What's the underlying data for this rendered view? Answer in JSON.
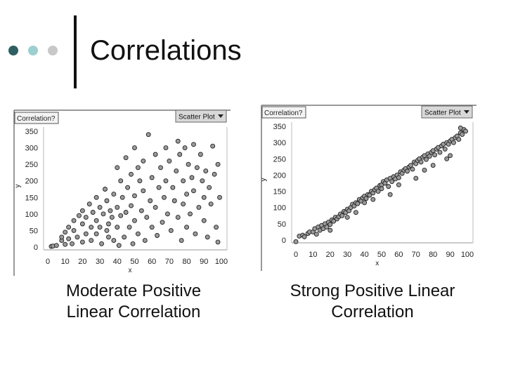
{
  "slide": {
    "title": "Correlations",
    "bullet_colors": [
      "#2f5f60",
      "#9ccfd0",
      "#c8c8c8"
    ]
  },
  "captions": {
    "left": [
      "Moderate Positive",
      "Linear Correlation"
    ],
    "right": [
      "Strong Positive Linear",
      "Correlation"
    ]
  },
  "chart_data": [
    {
      "type": "scatter",
      "title": "",
      "panel_label": "Correlation?",
      "plot_type_button": "Scatter Plot",
      "xlabel": "x",
      "ylabel": "y",
      "xlim": [
        0,
        100
      ],
      "ylim": [
        0,
        350
      ],
      "xticks": [
        "0",
        "10",
        "20",
        "30",
        "40",
        "50",
        "60",
        "70",
        "80",
        "90",
        "100"
      ],
      "yticks": [
        "0",
        "50",
        "100",
        "150",
        "200",
        "250",
        "300",
        "350"
      ],
      "points": [
        [
          2,
          2
        ],
        [
          3,
          3
        ],
        [
          5,
          5
        ],
        [
          8,
          20
        ],
        [
          8,
          30
        ],
        [
          10,
          8
        ],
        [
          10,
          45
        ],
        [
          12,
          25
        ],
        [
          12,
          60
        ],
        [
          14,
          10
        ],
        [
          15,
          80
        ],
        [
          15,
          50
        ],
        [
          17,
          30
        ],
        [
          18,
          95
        ],
        [
          20,
          15
        ],
        [
          20,
          70
        ],
        [
          20,
          110
        ],
        [
          22,
          40
        ],
        [
          22,
          90
        ],
        [
          24,
          130
        ],
        [
          25,
          60
        ],
        [
          25,
          20
        ],
        [
          26,
          105
        ],
        [
          28,
          150
        ],
        [
          28,
          80
        ],
        [
          28,
          40
        ],
        [
          30,
          120
        ],
        [
          30,
          60
        ],
        [
          31,
          10
        ],
        [
          32,
          100
        ],
        [
          33,
          175
        ],
        [
          34,
          140
        ],
        [
          34,
          50
        ],
        [
          35,
          70
        ],
        [
          35,
          30
        ],
        [
          36,
          110
        ],
        [
          37,
          90
        ],
        [
          38,
          160
        ],
        [
          38,
          20
        ],
        [
          40,
          240
        ],
        [
          40,
          120
        ],
        [
          40,
          60
        ],
        [
          41,
          5
        ],
        [
          42,
          200
        ],
        [
          42,
          95
        ],
        [
          43,
          150
        ],
        [
          44,
          30
        ],
        [
          45,
          105
        ],
        [
          45,
          270
        ],
        [
          46,
          180
        ],
        [
          47,
          60
        ],
        [
          48,
          220
        ],
        [
          48,
          125
        ],
        [
          49,
          10
        ],
        [
          50,
          300
        ],
        [
          50,
          155
        ],
        [
          50,
          80
        ],
        [
          52,
          240
        ],
        [
          52,
          40
        ],
        [
          53,
          200
        ],
        [
          54,
          110
        ],
        [
          55,
          260
        ],
        [
          55,
          170
        ],
        [
          56,
          20
        ],
        [
          57,
          90
        ],
        [
          58,
          340
        ],
        [
          59,
          140
        ],
        [
          60,
          210
        ],
        [
          60,
          60
        ],
        [
          62,
          280
        ],
        [
          62,
          120
        ],
        [
          63,
          35
        ],
        [
          64,
          180
        ],
        [
          65,
          240
        ],
        [
          66,
          75
        ],
        [
          67,
          150
        ],
        [
          68,
          300
        ],
        [
          68,
          200
        ],
        [
          69,
          100
        ],
        [
          70,
          260
        ],
        [
          71,
          50
        ],
        [
          72,
          180
        ],
        [
          73,
          140
        ],
        [
          74,
          230
        ],
        [
          75,
          320
        ],
        [
          75,
          90
        ],
        [
          76,
          280
        ],
        [
          77,
          20
        ],
        [
          78,
          200
        ],
        [
          78,
          130
        ],
        [
          79,
          300
        ],
        [
          80,
          160
        ],
        [
          80,
          60
        ],
        [
          81,
          250
        ],
        [
          82,
          100
        ],
        [
          83,
          210
        ],
        [
          84,
          310
        ],
        [
          84,
          170
        ],
        [
          85,
          40
        ],
        [
          86,
          240
        ],
        [
          87,
          120
        ],
        [
          88,
          280
        ],
        [
          89,
          200
        ],
        [
          90,
          80
        ],
        [
          90,
          150
        ],
        [
          91,
          230
        ],
        [
          92,
          30
        ],
        [
          93,
          180
        ],
        [
          94,
          130
        ],
        [
          95,
          305
        ],
        [
          96,
          220
        ],
        [
          97,
          60
        ],
        [
          98,
          250
        ],
        [
          98,
          15
        ],
        [
          99,
          150
        ]
      ]
    },
    {
      "type": "scatter",
      "title": "",
      "panel_label": "Correlation?",
      "plot_type_button": "Scatter Plot",
      "xlabel": "x",
      "ylabel": "y",
      "xlim": [
        0,
        100
      ],
      "ylim": [
        0,
        350
      ],
      "xticks": [
        "0",
        "10",
        "20",
        "30",
        "40",
        "50",
        "60",
        "70",
        "80",
        "90",
        "100"
      ],
      "yticks": [
        "0",
        "50",
        "100",
        "150",
        "200",
        "250",
        "300",
        "350"
      ],
      "points": [
        [
          0,
          -5
        ],
        [
          2,
          12
        ],
        [
          4,
          15
        ],
        [
          5,
          10
        ],
        [
          7,
          20
        ],
        [
          8,
          25
        ],
        [
          10,
          25
        ],
        [
          11,
          35
        ],
        [
          12,
          18
        ],
        [
          13,
          40
        ],
        [
          14,
          30
        ],
        [
          15,
          45
        ],
        [
          16,
          35
        ],
        [
          17,
          50
        ],
        [
          18,
          40
        ],
        [
          19,
          55
        ],
        [
          20,
          48
        ],
        [
          21,
          62
        ],
        [
          22,
          58
        ],
        [
          23,
          70
        ],
        [
          24,
          65
        ],
        [
          25,
          72
        ],
        [
          26,
          80
        ],
        [
          27,
          75
        ],
        [
          28,
          88
        ],
        [
          29,
          85
        ],
        [
          30,
          95
        ],
        [
          31,
          90
        ],
        [
          32,
          100
        ],
        [
          33,
          110
        ],
        [
          34,
          105
        ],
        [
          35,
          115
        ],
        [
          36,
          112
        ],
        [
          37,
          125
        ],
        [
          38,
          120
        ],
        [
          39,
          130
        ],
        [
          40,
          135
        ],
        [
          41,
          128
        ],
        [
          42,
          140
        ],
        [
          43,
          138
        ],
        [
          44,
          150
        ],
        [
          45,
          145
        ],
        [
          46,
          155
        ],
        [
          47,
          160
        ],
        [
          48,
          150
        ],
        [
          49,
          168
        ],
        [
          50,
          170
        ],
        [
          50,
          158
        ],
        [
          51,
          180
        ],
        [
          52,
          175
        ],
        [
          53,
          185
        ],
        [
          54,
          165
        ],
        [
          55,
          190
        ],
        [
          56,
          180
        ],
        [
          57,
          195
        ],
        [
          58,
          188
        ],
        [
          59,
          200
        ],
        [
          60,
          192
        ],
        [
          61,
          210
        ],
        [
          62,
          205
        ],
        [
          63,
          215
        ],
        [
          64,
          220
        ],
        [
          65,
          212
        ],
        [
          66,
          225
        ],
        [
          67,
          230
        ],
        [
          68,
          218
        ],
        [
          69,
          240
        ],
        [
          70,
          235
        ],
        [
          71,
          245
        ],
        [
          72,
          250
        ],
        [
          73,
          240
        ],
        [
          74,
          255
        ],
        [
          75,
          260
        ],
        [
          76,
          248
        ],
        [
          77,
          265
        ],
        [
          78,
          258
        ],
        [
          79,
          270
        ],
        [
          80,
          275
        ],
        [
          81,
          262
        ],
        [
          82,
          280
        ],
        [
          83,
          285
        ],
        [
          84,
          270
        ],
        [
          85,
          290
        ],
        [
          86,
          295
        ],
        [
          87,
          280
        ],
        [
          88,
          300
        ],
        [
          89,
          295
        ],
        [
          90,
          305
        ],
        [
          91,
          310
        ],
        [
          92,
          300
        ],
        [
          93,
          315
        ],
        [
          94,
          320
        ],
        [
          95,
          310
        ],
        [
          96,
          330
        ],
        [
          97,
          325
        ],
        [
          98,
          340
        ],
        [
          99,
          335
        ],
        [
          96,
          345
        ],
        [
          70,
          190
        ],
        [
          40,
          115
        ],
        [
          20,
          30
        ],
        [
          30,
          70
        ],
        [
          60,
          170
        ],
        [
          80,
          230
        ],
        [
          90,
          260
        ],
        [
          88,
          250
        ],
        [
          55,
          140
        ],
        [
          45,
          125
        ],
        [
          35,
          85
        ],
        [
          75,
          215
        ]
      ]
    }
  ]
}
